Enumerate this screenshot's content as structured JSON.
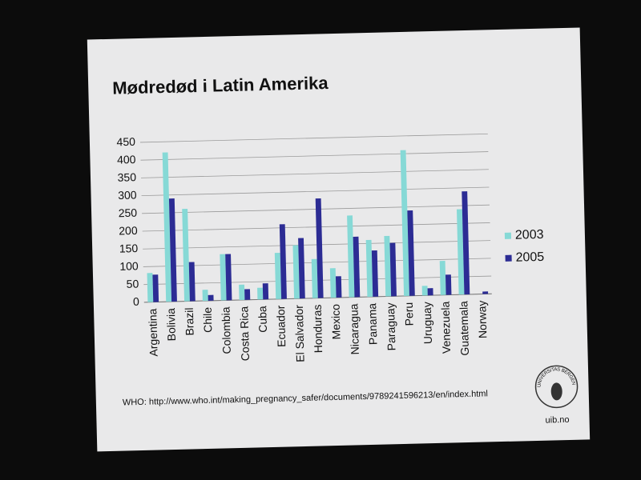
{
  "chart_data": {
    "type": "bar",
    "title": "Mødredød i Latin Amerika",
    "categories": [
      "Argentina",
      "Bolivia",
      "Brazil",
      "Chile",
      "Colombia",
      "Costa Rica",
      "Cuba",
      "Ecuador",
      "El Salvador",
      "Honduras",
      "Mexico",
      "Nicaragua",
      "Panama",
      "Paraguay",
      "Peru",
      "Uruguay",
      "Venezuela",
      "Guatemala",
      "Norway"
    ],
    "series": [
      {
        "name": "2003",
        "color": "#86d9d6",
        "values": [
          82,
          420,
          260,
          31,
          130,
          43,
          33,
          130,
          150,
          110,
          83,
          230,
          160,
          170,
          410,
          27,
          96,
          240,
          null
        ]
      },
      {
        "name": "2005",
        "color": "#2c2c94",
        "values": [
          77,
          290,
          110,
          16,
          130,
          30,
          45,
          210,
          170,
          280,
          60,
          170,
          130,
          150,
          240,
          20,
          57,
          290,
          7
        ]
      }
    ],
    "ylim": [
      0,
      450
    ],
    "yticks": [
      0,
      50,
      100,
      150,
      200,
      250,
      300,
      350,
      400,
      450
    ],
    "grid": true,
    "legend": "right"
  },
  "source": "WHO: http://www.who.int/making_pregnancy_safer/documents/9789241596213/en/index.html",
  "logo_text": "UNIVERSITAS BERGENSIS",
  "footer": "uib.no"
}
